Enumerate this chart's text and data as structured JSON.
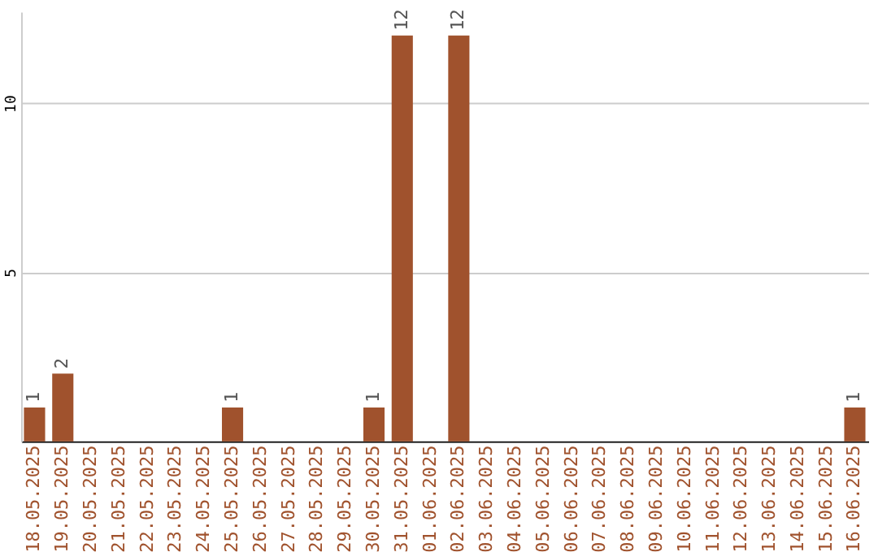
{
  "chart_data": {
    "type": "bar",
    "categories": [
      "18.05.2025",
      "19.05.2025",
      "20.05.2025",
      "21.05.2025",
      "22.05.2025",
      "23.05.2025",
      "24.05.2025",
      "25.05.2025",
      "26.05.2025",
      "27.05.2025",
      "28.05.2025",
      "29.05.2025",
      "30.05.2025",
      "31.05.2025",
      "01.06.2025",
      "02.06.2025",
      "03.06.2025",
      "04.06.2025",
      "05.06.2025",
      "06.06.2025",
      "07.06.2025",
      "08.06.2025",
      "09.06.2025",
      "10.06.2025",
      "11.06.2025",
      "12.06.2025",
      "13.06.2025",
      "14.06.2025",
      "15.06.2025",
      "16.06.2025"
    ],
    "values": [
      1,
      2,
      0,
      0,
      0,
      0,
      0,
      1,
      0,
      0,
      0,
      0,
      1,
      12,
      0,
      12,
      0,
      0,
      0,
      0,
      0,
      0,
      0,
      0,
      0,
      0,
      0,
      0,
      0,
      1
    ],
    "value_labels": [
      "1",
      "2",
      null,
      null,
      null,
      null,
      null,
      "1",
      null,
      null,
      null,
      null,
      "1",
      "12",
      null,
      "12",
      null,
      null,
      null,
      null,
      null,
      null,
      null,
      null,
      null,
      null,
      null,
      null,
      null,
      "1"
    ],
    "color": "#a0522d",
    "ylim": [
      0,
      12.7
    ],
    "yticks": [
      5,
      10
    ],
    "grid": "y"
  }
}
